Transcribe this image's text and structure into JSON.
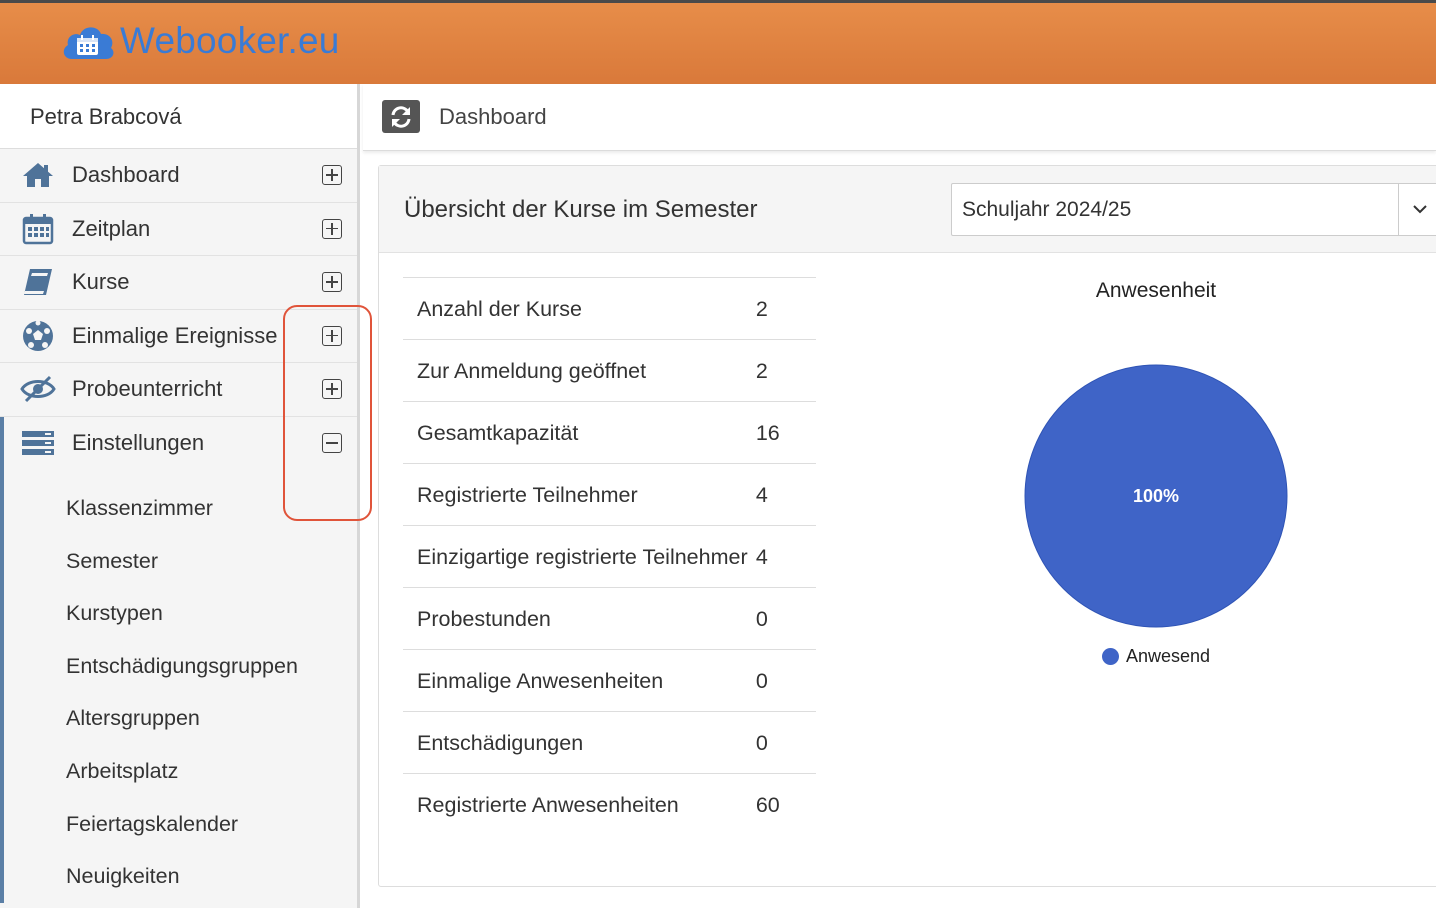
{
  "app": {
    "brand": "Webooker.eu",
    "accent": "#3a7bd5",
    "header_color": "#e0843f"
  },
  "sidebar": {
    "user_name": "Petra Brabcová",
    "items": [
      {
        "label": "Dashboard",
        "icon": "home-icon",
        "toggle": "plus"
      },
      {
        "label": "Zeitplan",
        "icon": "calendar-icon",
        "toggle": "plus"
      },
      {
        "label": "Kurse",
        "icon": "book-icon",
        "toggle": "plus"
      },
      {
        "label": "Einmalige Ereignisse",
        "icon": "football-icon",
        "toggle": "plus"
      },
      {
        "label": "Probeunterricht",
        "icon": "eye-slash-icon",
        "toggle": "plus"
      },
      {
        "label": "Einstellungen",
        "icon": "server-icon",
        "toggle": "minus"
      }
    ],
    "submenu": [
      "Klassenzimmer",
      "Semester",
      "Kurstypen",
      "Entschädigungsgruppen",
      "Altersgruppen",
      "Arbeitsplatz",
      "Feiertagskalender",
      "Neuigkeiten"
    ]
  },
  "main": {
    "page_title": "Dashboard",
    "panel_title": "Übersicht der Kurse im Semester",
    "semester_select": "Schuljahr 2024/25",
    "stats": [
      {
        "label": "Anzahl der Kurse",
        "value": "2"
      },
      {
        "label": "Zur Anmeldung geöffnet",
        "value": "2"
      },
      {
        "label": "Gesamtkapazität",
        "value": "16"
      },
      {
        "label": "Registrierte Teilnehmer",
        "value": "4"
      },
      {
        "label": "Einzigartige registrierte Teilnehmer",
        "value": "4"
      },
      {
        "label": "Probestunden",
        "value": "0"
      },
      {
        "label": "Einmalige Anwesenheiten",
        "value": "0"
      },
      {
        "label": "Entschädigungen",
        "value": "0"
      },
      {
        "label": "Registrierte Anwesenheiten",
        "value": "60"
      }
    ]
  },
  "chart_data": {
    "type": "pie",
    "title": "Anwesenheit",
    "slices": [
      {
        "label": "Anwesend",
        "value": 100,
        "display": "100%",
        "color": "#3f64c7"
      }
    ],
    "legend": "bottom"
  }
}
